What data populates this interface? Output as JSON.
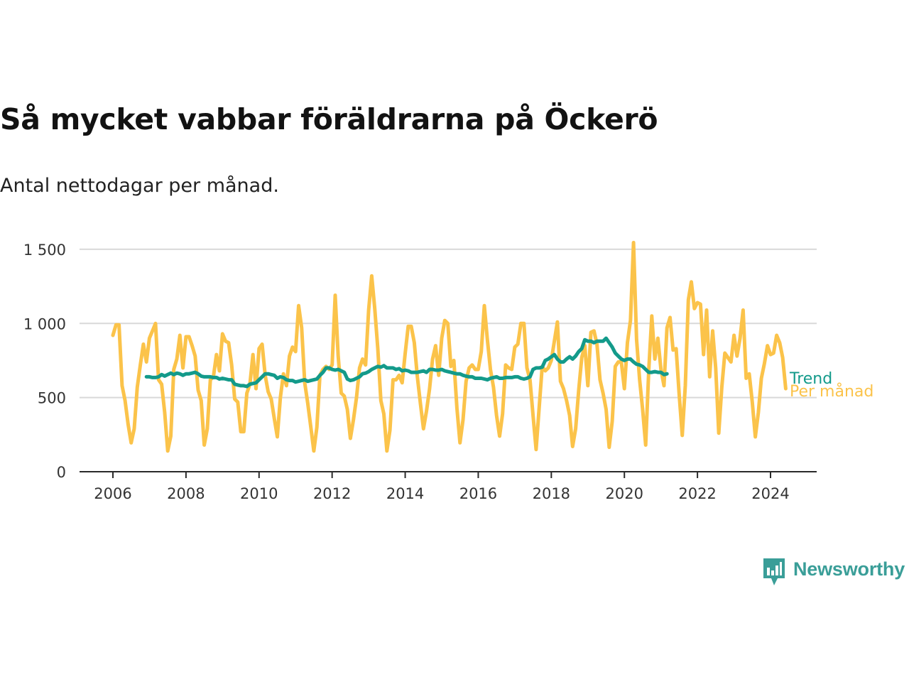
{
  "title": "Så mycket vabbar föräldrarna på Öckerö",
  "subtitle": "Antal nettodagar per månad.",
  "brand": {
    "name": "Newsworthy",
    "icon": "newsworthy-logo-icon",
    "color": "#3a9e98"
  },
  "chart_data": {
    "type": "line",
    "title": "Så mycket vabbar föräldrarna på Öckerö",
    "subtitle": "Antal nettodagar per månad.",
    "xlabel": "",
    "ylabel": "",
    "xlim": [
      2006,
      2024.5
    ],
    "ylim": [
      0,
      1600
    ],
    "grid": true,
    "x_ticks": [
      {
        "value": 2006,
        "label": "2006"
      },
      {
        "value": 2008,
        "label": "2008"
      },
      {
        "value": 2010,
        "label": "2010"
      },
      {
        "value": 2012,
        "label": "2012"
      },
      {
        "value": 2014,
        "label": "2014"
      },
      {
        "value": 2016,
        "label": "2016"
      },
      {
        "value": 2018,
        "label": "2018"
      },
      {
        "value": 2020,
        "label": "2020"
      },
      {
        "value": 2022,
        "label": "2022"
      },
      {
        "value": 2024,
        "label": "2024"
      }
    ],
    "y_ticks": [
      {
        "value": 0,
        "label": "0"
      },
      {
        "value": 500,
        "label": "500"
      },
      {
        "value": 1000,
        "label": "1 000"
      },
      {
        "value": 1500,
        "label": "1 500"
      }
    ],
    "series": [
      {
        "name": "Per månad",
        "color": "#fbc34a",
        "start": [
          2006,
          1
        ],
        "values": [
          920,
          990,
          990,
          580,
          480,
          320,
          195,
          290,
          570,
          720,
          860,
          740,
          900,
          950,
          1000,
          620,
          590,
          400,
          140,
          240,
          690,
          760,
          920,
          700,
          910,
          910,
          850,
          780,
          550,
          480,
          180,
          290,
          620,
          640,
          790,
          680,
          930,
          880,
          870,
          720,
          490,
          470,
          270,
          270,
          530,
          590,
          790,
          560,
          830,
          860,
          650,
          540,
          490,
          360,
          235,
          500,
          660,
          580,
          780,
          840,
          810,
          1120,
          970,
          600,
          460,
          300,
          140,
          300,
          650,
          690,
          710,
          690,
          720,
          1190,
          780,
          530,
          510,
          420,
          225,
          350,
          500,
          700,
          760,
          720,
          1090,
          1320,
          1100,
          830,
          480,
          390,
          140,
          280,
          620,
          620,
          650,
          600,
          800,
          980,
          980,
          870,
          640,
          460,
          290,
          410,
          560,
          760,
          850,
          650,
          900,
          1020,
          1000,
          710,
          750,
          430,
          195,
          350,
          610,
          700,
          720,
          690,
          690,
          810,
          1120,
          890,
          690,
          570,
          380,
          240,
          390,
          720,
          700,
          690,
          840,
          860,
          1000,
          1000,
          700,
          620,
          380,
          150,
          430,
          710,
          680,
          700,
          750,
          880,
          1010,
          610,
          560,
          480,
          380,
          170,
          290,
          550,
          770,
          850,
          580,
          940,
          950,
          860,
          620,
          530,
          420,
          165,
          340,
          710,
          740,
          740,
          560,
          870,
          1020,
          1545,
          890,
          620,
          420,
          180,
          680,
          1050,
          760,
          900,
          690,
          580,
          970,
          1040,
          820,
          830,
          520,
          245,
          580,
          1160,
          1280,
          1100,
          1140,
          1130,
          790,
          1090,
          640,
          950,
          700,
          260,
          570,
          800,
          770,
          740,
          920,
          780,
          900,
          1090,
          630,
          660,
          470,
          235,
          400,
          630,
          730,
          850,
          790,
          800,
          920,
          870,
          770,
          560
        ]
      },
      {
        "name": "Trend",
        "color": "#139a8a",
        "start": [
          2006,
          12
        ],
        "values": [
          640,
          640,
          635,
          635,
          640,
          655,
          645,
          655,
          665,
          655,
          665,
          660,
          650,
          660,
          660,
          665,
          670,
          660,
          645,
          640,
          640,
          640,
          635,
          635,
          625,
          630,
          625,
          620,
          620,
          590,
          585,
          580,
          580,
          575,
          590,
          595,
          600,
          620,
          640,
          660,
          660,
          655,
          650,
          630,
          640,
          635,
          620,
          615,
          615,
          605,
          610,
          615,
          620,
          610,
          615,
          620,
          625,
          650,
          670,
          700,
          700,
          690,
          685,
          690,
          680,
          670,
          625,
          615,
          620,
          630,
          640,
          660,
          665,
          675,
          690,
          700,
          710,
          705,
          715,
          700,
          700,
          700,
          690,
          695,
          680,
          685,
          680,
          670,
          670,
          670,
          675,
          680,
          670,
          690,
          690,
          685,
          685,
          690,
          680,
          675,
          670,
          665,
          660,
          660,
          650,
          645,
          640,
          640,
          630,
          630,
          630,
          625,
          620,
          630,
          635,
          640,
          630,
          630,
          635,
          635,
          635,
          640,
          640,
          630,
          625,
          630,
          640,
          690,
          700,
          700,
          705,
          750,
          760,
          775,
          790,
          760,
          740,
          740,
          760,
          775,
          760,
          780,
          810,
          830,
          890,
          880,
          880,
          870,
          880,
          880,
          880,
          900,
          870,
          840,
          800,
          780,
          760,
          750,
          760,
          760,
          740,
          725,
          720,
          710,
          690,
          670,
          670,
          675,
          670,
          670,
          655,
          660
        ]
      }
    ],
    "legend": "inline-right-end"
  }
}
